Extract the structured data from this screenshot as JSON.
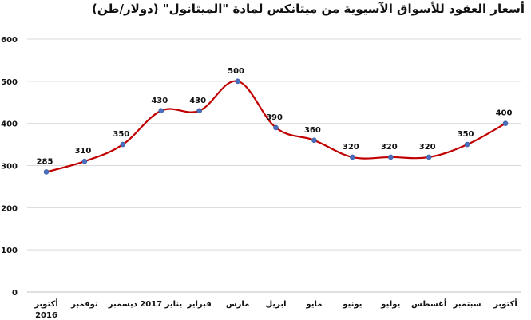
{
  "chart_data": {
    "type": "line",
    "title": "أسعار العقود للأسواق الآسيوية من ميثانكس لمادة \"الميثانول\" (دولار/طن)",
    "xlabel": "",
    "ylabel": "",
    "ylim": [
      0,
      600
    ],
    "yticks": [
      0,
      100,
      200,
      300,
      400,
      500,
      600
    ],
    "grid": true,
    "categories": [
      [
        "أكتوبر",
        "2016"
      ],
      [
        "نوفمبر"
      ],
      [
        "ديسمبر"
      ],
      [
        "يناير 2017"
      ],
      [
        "فبراير"
      ],
      [
        "مارس"
      ],
      [
        "ابريل"
      ],
      [
        "مايو"
      ],
      [
        "يونيو"
      ],
      [
        "يوليو"
      ],
      [
        "أغسطس"
      ],
      [
        "سبتمبر"
      ],
      [
        "أكتوبر"
      ]
    ],
    "series": [
      {
        "values": [
          285,
          310,
          350,
          430,
          430,
          500,
          390,
          360,
          320,
          320,
          320,
          350,
          400
        ]
      }
    ],
    "colors": {
      "line": "#c00000",
      "marker": "#4a6fbf",
      "grid": "#d9d9d9",
      "text": "#111111"
    }
  }
}
